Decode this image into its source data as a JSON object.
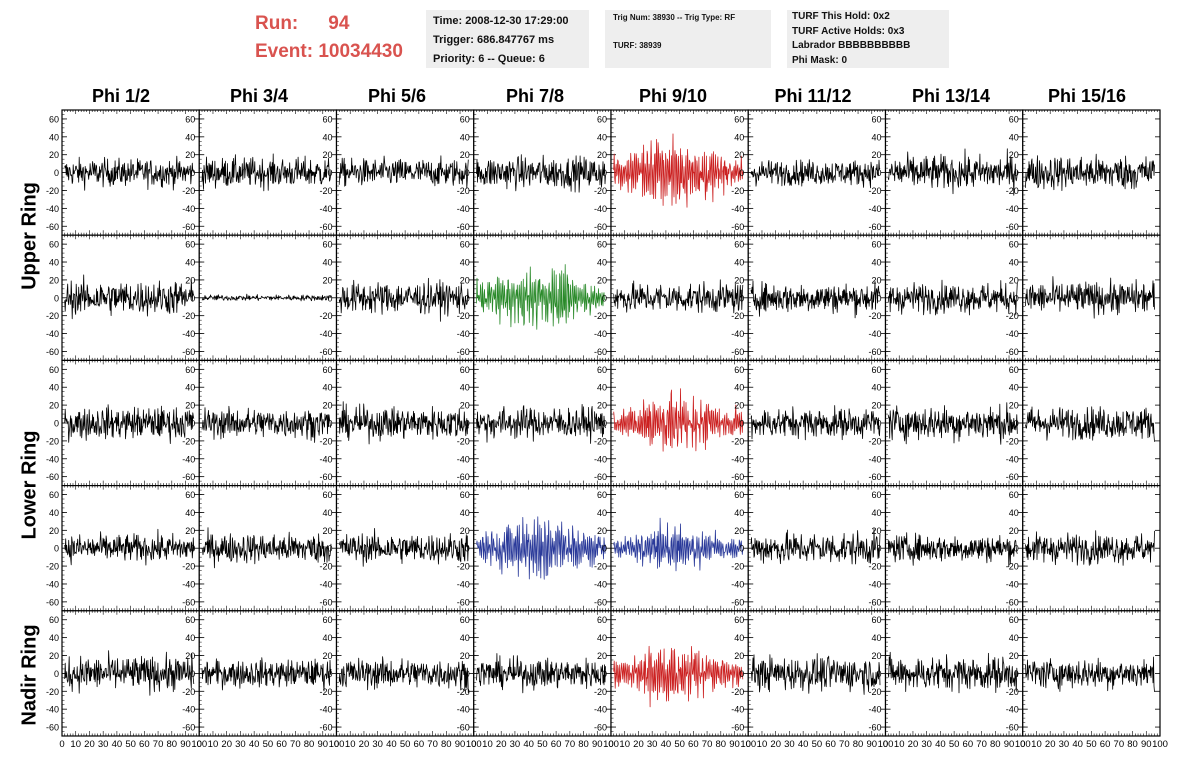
{
  "run_info": {
    "run_label": "Run:",
    "run_value": "94",
    "event_label": "Event:",
    "event_value": "10034430"
  },
  "time_box": {
    "time": "Time: 2008-12-30 17:29:00",
    "trigger": "Trigger: 686.847767 ms",
    "priority": "Priority: 6 -- Queue: 6"
  },
  "trig_box": {
    "trig": "Trig Num: 38930 -- Trig Type: RF",
    "turf": "TURF: 38939"
  },
  "turf_box": {
    "this_hold": "TURF This Hold: 0x2",
    "active_holds": "TURF Active Holds: 0x3",
    "labrador": "Labrador BBBBBBBBBB",
    "phi_mask": "Phi Mask: 0"
  },
  "columns": [
    "Phi 1/2",
    "Phi 3/4",
    "Phi 5/6",
    "Phi 7/8",
    "Phi 9/10",
    "Phi 11/12",
    "Phi 13/14",
    "Phi 15/16"
  ],
  "row_labels": {
    "upper": "Upper Ring",
    "lower": "Lower Ring",
    "nadir": "Nadir Ring"
  },
  "colors": {
    "header_red": "#d9534f",
    "trace_black": "#000000",
    "trace_red": "#cc2222",
    "trace_green": "#2a8a2a",
    "trace_blue": "#2a3a9a",
    "info_bg": "#eeeeee"
  },
  "chart_data": {
    "type": "line",
    "title": "",
    "xlabel": "",
    "ylabel": "",
    "xlim": [
      0,
      100
    ],
    "ylim": [
      -70,
      70
    ],
    "yticks": [
      -60,
      -40,
      -20,
      0,
      20,
      40,
      60
    ],
    "ytick_labels": [
      "-60",
      "-40",
      "-20",
      "0",
      "20",
      "40",
      "60"
    ],
    "xticks": [
      0,
      10,
      20,
      30,
      40,
      50,
      60,
      70,
      80,
      90,
      100
    ],
    "xtick_labels": [
      "0",
      "10",
      "20",
      "30",
      "40",
      "50",
      "60",
      "70",
      "80",
      "90",
      "100"
    ],
    "panel_rows": 5,
    "panel_cols": 8,
    "points_per_trace": 260,
    "panels": [
      [
        {
          "amp": 12,
          "color": "black"
        },
        {
          "amp": 13,
          "color": "black"
        },
        {
          "amp": 12,
          "color": "black"
        },
        {
          "amp": 14,
          "color": "black"
        },
        {
          "amp": 26,
          "color": "red",
          "burst": true
        },
        {
          "amp": 11,
          "color": "black"
        },
        {
          "amp": 15,
          "color": "black"
        },
        {
          "amp": 15,
          "color": "black"
        }
      ],
      [
        {
          "amp": 15,
          "color": "black"
        },
        {
          "amp": 2.5,
          "color": "black"
        },
        {
          "amp": 14,
          "color": "black"
        },
        {
          "amp": 24,
          "color": "green",
          "burst": true
        },
        {
          "amp": 13,
          "color": "black"
        },
        {
          "amp": 13,
          "color": "black"
        },
        {
          "amp": 13,
          "color": "black"
        },
        {
          "amp": 14,
          "color": "black"
        }
      ],
      [
        {
          "amp": 14,
          "color": "black"
        },
        {
          "amp": 13,
          "color": "black"
        },
        {
          "amp": 14,
          "color": "black"
        },
        {
          "amp": 14,
          "color": "black"
        },
        {
          "amp": 22,
          "color": "red",
          "burst": true
        },
        {
          "amp": 13,
          "color": "black"
        },
        {
          "amp": 15,
          "color": "black"
        },
        {
          "amp": 14,
          "color": "black"
        }
      ],
      [
        {
          "amp": 12,
          "color": "black"
        },
        {
          "amp": 13,
          "color": "black"
        },
        {
          "amp": 13,
          "color": "black"
        },
        {
          "amp": 24,
          "color": "blue",
          "burst": true
        },
        {
          "amp": 16,
          "color": "blue",
          "burst": true
        },
        {
          "amp": 14,
          "color": "black"
        },
        {
          "amp": 12,
          "color": "black"
        },
        {
          "amp": 13,
          "color": "black"
        }
      ],
      [
        {
          "amp": 15,
          "color": "black"
        },
        {
          "amp": 12,
          "color": "black"
        },
        {
          "amp": 13,
          "color": "black"
        },
        {
          "amp": 13,
          "color": "black"
        },
        {
          "amp": 22,
          "color": "red",
          "burst": true
        },
        {
          "amp": 15,
          "color": "black"
        },
        {
          "amp": 15,
          "color": "black"
        },
        {
          "amp": 13,
          "color": "black"
        }
      ]
    ]
  }
}
